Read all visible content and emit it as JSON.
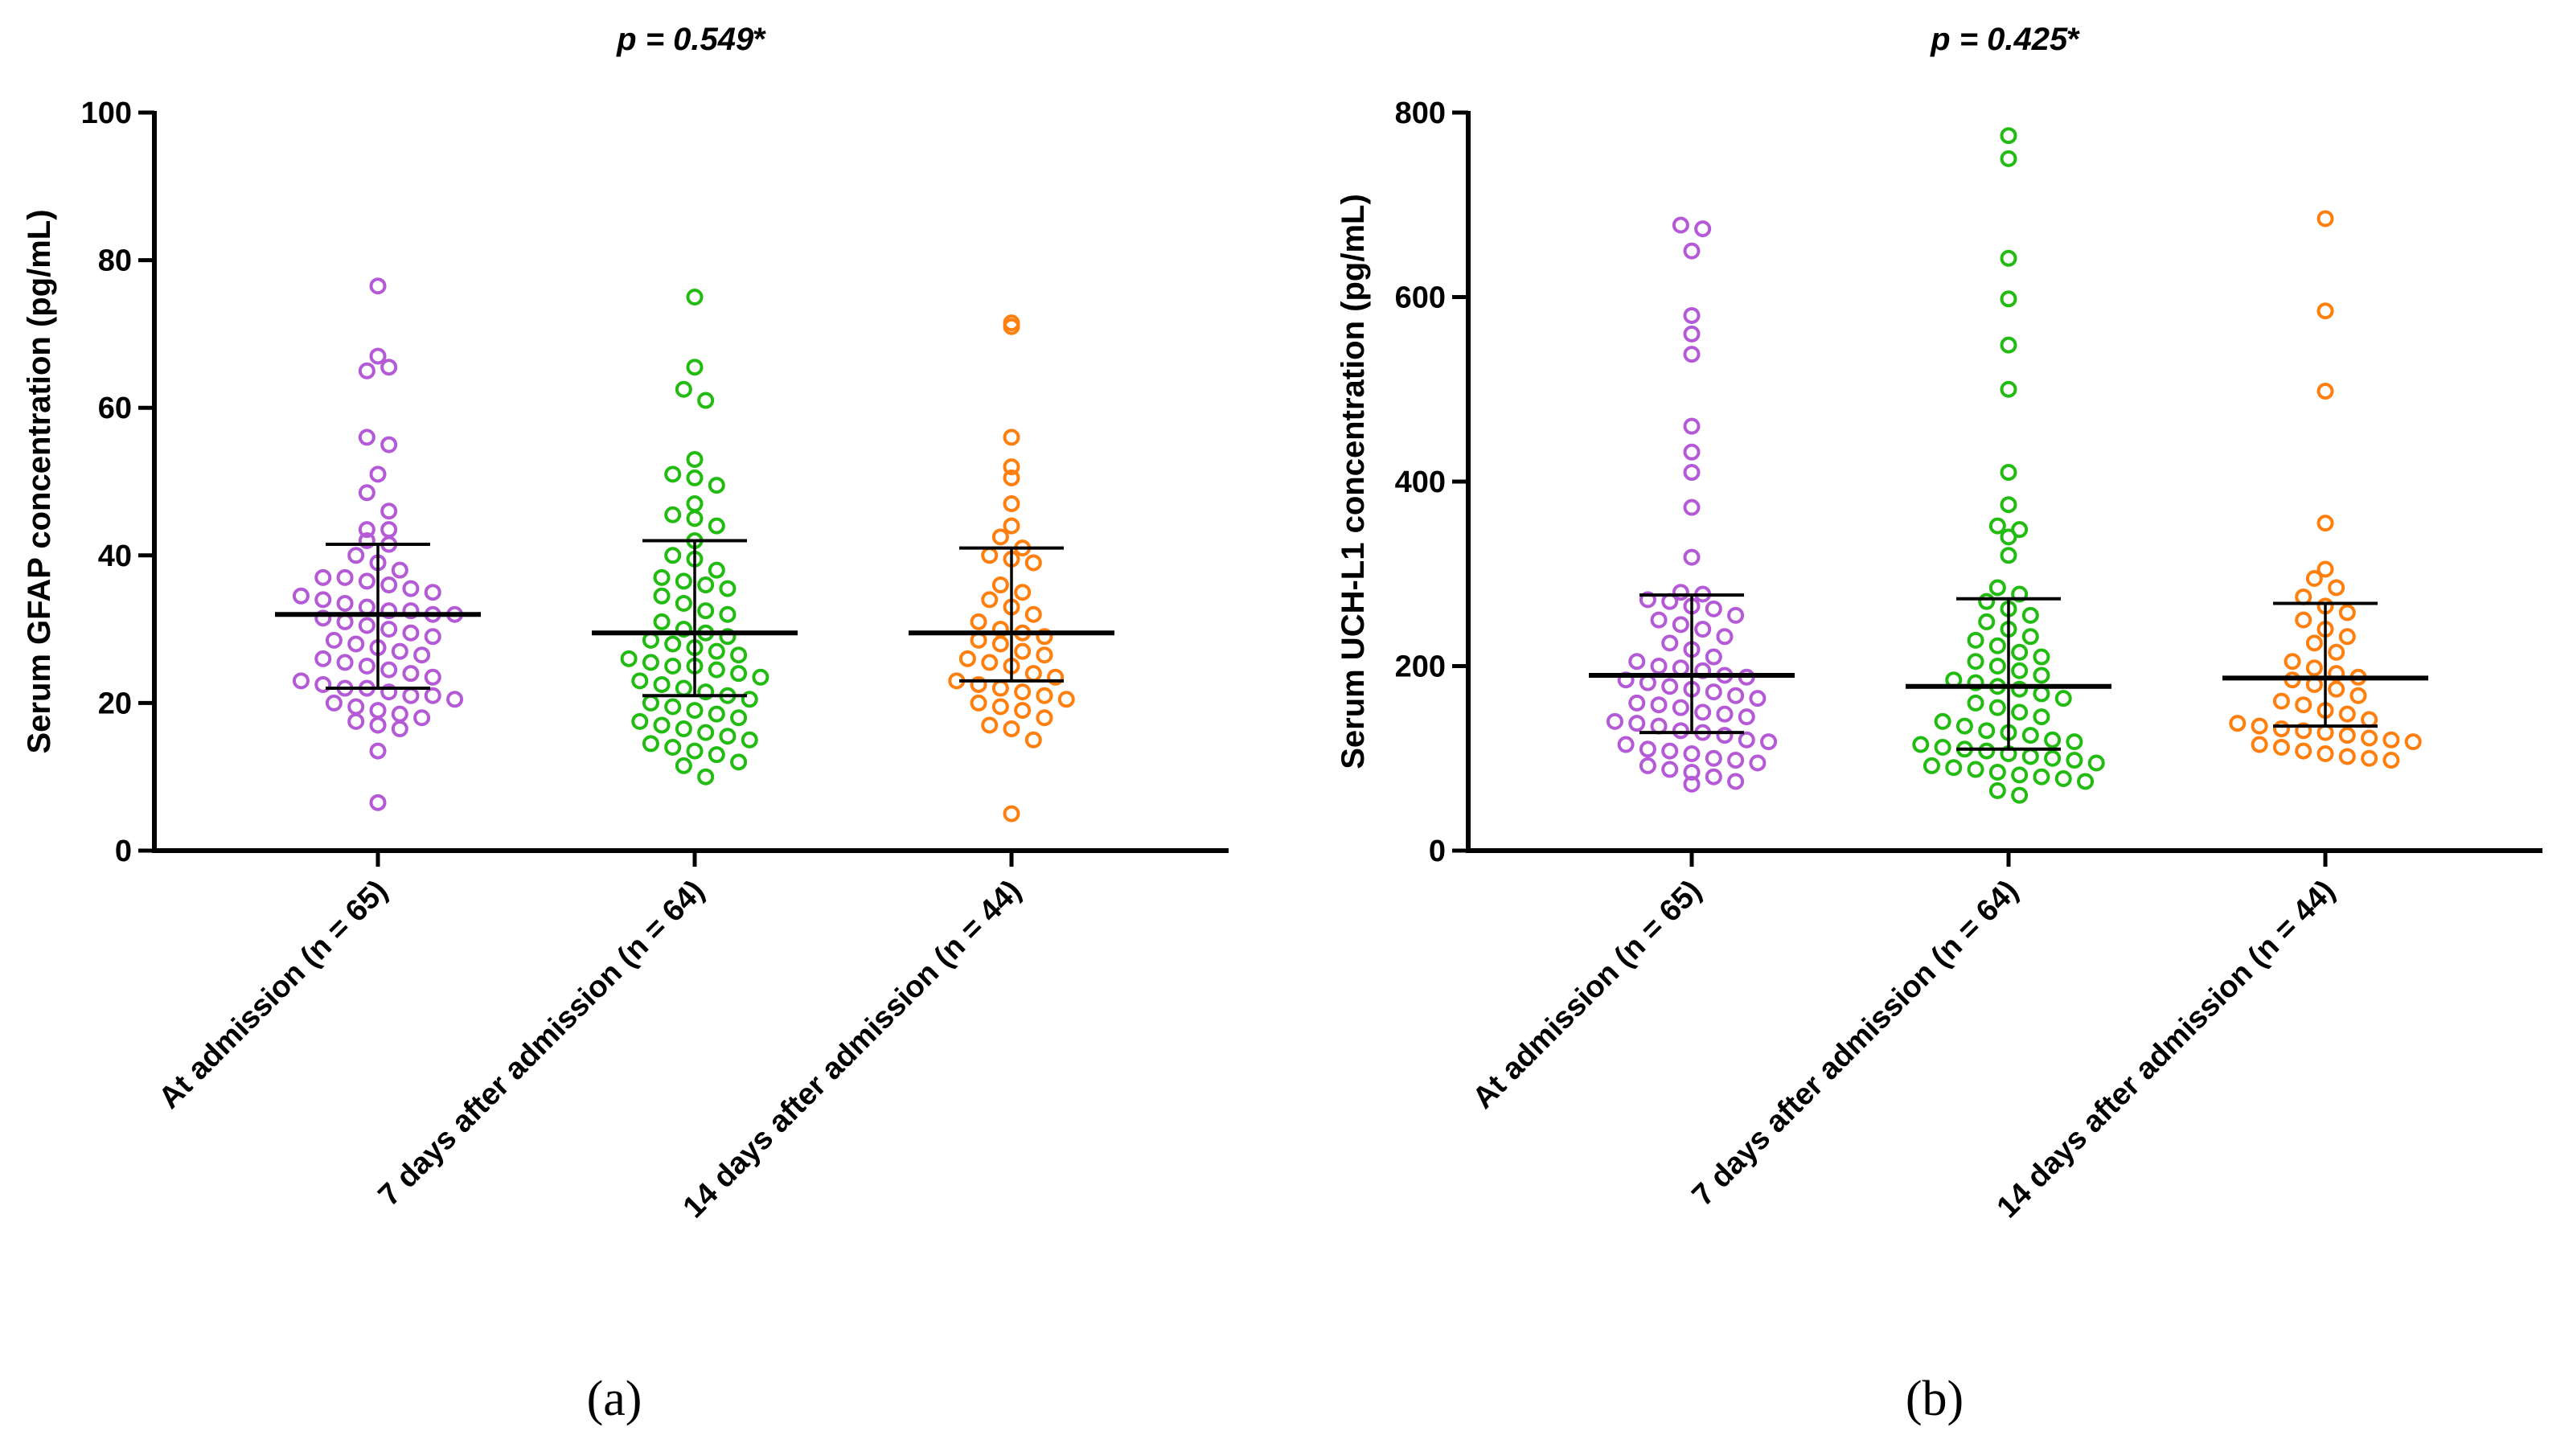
{
  "chart_data": [
    {
      "type": "scatter",
      "panel_label": "(a)",
      "title_prefix": "p = ",
      "title_value": "0.549",
      "title_suffix": "*",
      "ylabel": "Serum GFAP concentration (pg/mL)",
      "ylim": [
        0,
        100
      ],
      "yticks": [
        0,
        20,
        40,
        60,
        80,
        100
      ],
      "categories": [
        "At admission (n = 65)",
        "7 days after admission (n = 64)",
        "14 days after admission (n = 44)"
      ],
      "series": [
        {
          "name": "At admission (n = 65)",
          "color": "#b45ad6",
          "median": 32.0,
          "q1": 22.0,
          "q3": 41.5,
          "values": [
            76.5,
            67.0,
            65.0,
            65.5,
            56.0,
            55.0,
            51.0,
            48.5,
            46.0,
            43.5,
            43.5,
            42.0,
            41.5,
            40.0,
            39.0,
            38.0,
            37.0,
            37.0,
            36.5,
            36.0,
            35.5,
            35.0,
            34.5,
            34.0,
            33.5,
            33.0,
            32.5,
            32.5,
            32.0,
            32.0,
            31.5,
            31.0,
            30.5,
            30.0,
            29.5,
            29.0,
            28.5,
            28.0,
            27.5,
            27.0,
            26.5,
            26.0,
            25.5,
            25.0,
            24.5,
            24.0,
            23.5,
            23.0,
            22.5,
            22.0,
            22.0,
            21.5,
            21.0,
            21.0,
            20.5,
            20.0,
            19.5,
            19.0,
            18.5,
            18.0,
            17.5,
            17.0,
            16.5,
            13.5,
            6.5
          ]
        },
        {
          "name": "7 days after admission (n = 64)",
          "color": "#22bb11",
          "median": 29.5,
          "q1": 21.0,
          "q3": 42.0,
          "values": [
            75.0,
            65.5,
            62.5,
            61.0,
            53.0,
            51.0,
            50.5,
            49.5,
            47.0,
            45.5,
            45.0,
            44.0,
            42.0,
            40.0,
            39.5,
            38.0,
            37.0,
            36.5,
            36.0,
            35.5,
            34.5,
            33.5,
            32.5,
            32.0,
            31.0,
            30.0,
            29.5,
            29.0,
            28.5,
            28.0,
            27.5,
            27.0,
            26.5,
            26.0,
            25.5,
            25.0,
            25.0,
            24.5,
            24.0,
            23.5,
            23.0,
            22.5,
            22.0,
            21.5,
            21.0,
            20.5,
            20.0,
            19.5,
            19.0,
            18.5,
            18.0,
            17.5,
            17.0,
            16.5,
            16.0,
            15.5,
            15.0,
            14.5,
            14.0,
            13.5,
            13.0,
            12.0,
            11.5,
            10.0
          ]
        },
        {
          "name": "14 days after admission (n = 44)",
          "color": "#ff7f0e",
          "median": 29.5,
          "q1": 23.0,
          "q3": 41.0,
          "values": [
            71.5,
            71.0,
            56.0,
            52.0,
            50.5,
            47.0,
            44.0,
            42.5,
            41.0,
            40.0,
            39.5,
            39.0,
            36.0,
            35.0,
            34.0,
            33.0,
            32.0,
            31.0,
            30.0,
            29.5,
            29.0,
            28.5,
            28.0,
            27.0,
            26.5,
            26.0,
            25.5,
            25.0,
            24.0,
            23.5,
            23.0,
            22.5,
            22.0,
            21.5,
            21.0,
            20.5,
            20.0,
            19.5,
            19.0,
            18.0,
            17.0,
            16.5,
            15.0,
            5.0
          ]
        }
      ]
    },
    {
      "type": "scatter",
      "panel_label": "(b)",
      "title_prefix": "p = ",
      "title_value": "0.425",
      "title_suffix": "*",
      "ylabel": "Serum UCH-L1 concentration (pg/mL)",
      "ylim": [
        0,
        800
      ],
      "yticks": [
        0,
        200,
        400,
        600,
        800
      ],
      "categories": [
        "At admission (n = 65)",
        "7 days after admission (n = 64)",
        "14 days after admission (n = 44)"
      ],
      "series": [
        {
          "name": "At admission (n = 65)",
          "color": "#b45ad6",
          "median": 190,
          "q1": 128,
          "q3": 277,
          "values": [
            678,
            674,
            650,
            580,
            560,
            538,
            460,
            432,
            410,
            372,
            318,
            280,
            278,
            272,
            270,
            265,
            262,
            255,
            250,
            245,
            240,
            232,
            225,
            218,
            210,
            205,
            200,
            198,
            195,
            190,
            188,
            185,
            182,
            178,
            175,
            172,
            168,
            165,
            160,
            158,
            155,
            150,
            148,
            145,
            140,
            138,
            135,
            130,
            128,
            125,
            120,
            118,
            115,
            110,
            108,
            105,
            100,
            98,
            95,
            92,
            88,
            85,
            80,
            75,
            72
          ]
        },
        {
          "name": "7 days after admission (n = 64)",
          "color": "#22bb11",
          "median": 178,
          "q1": 110,
          "q3": 273,
          "values": [
            775,
            750,
            642,
            598,
            548,
            500,
            410,
            375,
            352,
            348,
            340,
            320,
            285,
            278,
            270,
            262,
            255,
            248,
            240,
            232,
            228,
            222,
            215,
            210,
            205,
            200,
            195,
            190,
            185,
            182,
            178,
            175,
            170,
            165,
            160,
            155,
            150,
            145,
            140,
            135,
            130,
            128,
            125,
            120,
            118,
            115,
            112,
            110,
            108,
            105,
            102,
            100,
            98,
            95,
            92,
            90,
            88,
            85,
            82,
            80,
            78,
            75,
            65,
            60
          ]
        },
        {
          "name": "14 days after admission (n = 44)",
          "color": "#ff7f0e",
          "median": 187,
          "q1": 135,
          "q3": 268,
          "values": [
            685,
            585,
            498,
            355,
            305,
            295,
            285,
            275,
            265,
            258,
            250,
            240,
            232,
            225,
            215,
            205,
            198,
            192,
            188,
            185,
            180,
            175,
            168,
            162,
            158,
            152,
            148,
            142,
            138,
            135,
            132,
            130,
            128,
            125,
            122,
            120,
            118,
            115,
            112,
            108,
            105,
            102,
            100,
            98
          ]
        }
      ]
    }
  ]
}
